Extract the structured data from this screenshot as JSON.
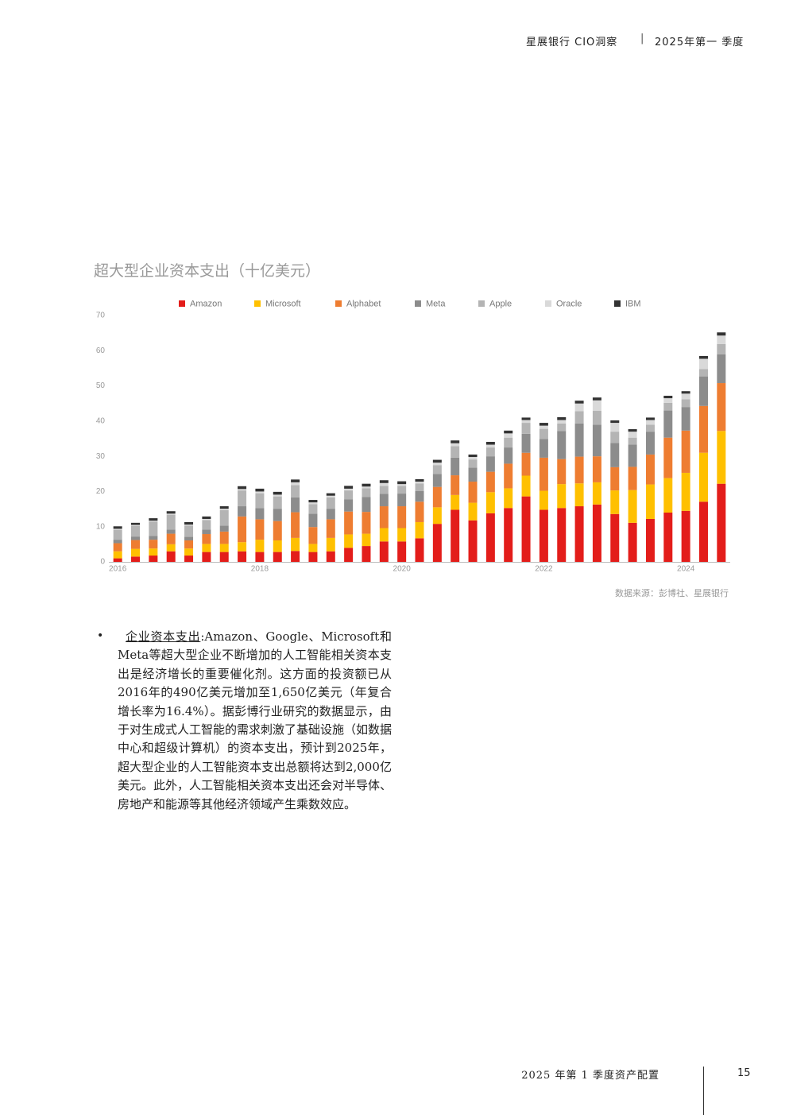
{
  "header": {
    "brand": "星展银行 CIO洞察",
    "separator": "|",
    "period": "2025年第一 季度"
  },
  "chart_data": {
    "type": "stacked_bar",
    "title": "超大型企业资本支出（十亿美元）",
    "categories": [
      "2016",
      null,
      null,
      null,
      null,
      null,
      null,
      null,
      "2018",
      null,
      null,
      null,
      null,
      null,
      null,
      null,
      "2020",
      null,
      null,
      null,
      null,
      null,
      null,
      null,
      "2022",
      null,
      null,
      null,
      null,
      null,
      null,
      null,
      "2024",
      null,
      null
    ],
    "series": [
      {
        "name": "Amazon",
        "color": "#e31d1a",
        "values": [
          1.0,
          1.5,
          1.8,
          3.0,
          1.8,
          2.8,
          2.8,
          3.0,
          2.8,
          2.8,
          3.1,
          2.8,
          3.0,
          4.0,
          4.5,
          5.8,
          5.8,
          6.7,
          10.8,
          14.8,
          11.8,
          13.8,
          15.3,
          18.6,
          14.8,
          15.3,
          15.8,
          16.3,
          13.6,
          11.1,
          12.2,
          14.0,
          14.5,
          17.1,
          22.2
        ]
      },
      {
        "name": "Microsoft",
        "color": "#ffc000",
        "values": [
          2.0,
          2.2,
          2.0,
          2.0,
          2.0,
          2.3,
          2.3,
          2.6,
          3.5,
          3.3,
          3.7,
          2.3,
          3.8,
          3.8,
          3.5,
          3.8,
          3.8,
          4.6,
          4.7,
          4.2,
          5.0,
          6.0,
          5.6,
          5.9,
          5.4,
          6.8,
          6.5,
          6.3,
          6.7,
          9.3,
          9.8,
          9.8,
          10.8,
          13.9,
          15.0
        ]
      },
      {
        "name": "Alphabet",
        "color": "#ee7d31",
        "values": [
          2.3,
          2.5,
          2.5,
          3.0,
          2.3,
          2.8,
          3.5,
          7.3,
          5.8,
          5.5,
          7.3,
          4.8,
          5.3,
          6.5,
          6.2,
          6.2,
          6.2,
          5.8,
          5.8,
          5.6,
          6.0,
          5.8,
          7.0,
          6.5,
          9.4,
          7.1,
          7.6,
          7.4,
          6.6,
          6.6,
          8.5,
          11.5,
          12.0,
          13.3,
          13.6
        ]
      },
      {
        "name": "Meta",
        "color": "#8c8c8c",
        "values": [
          1.0,
          1.0,
          1.1,
          1.2,
          1.0,
          1.3,
          1.7,
          2.9,
          3.2,
          3.5,
          4.2,
          3.8,
          3.0,
          3.5,
          4.2,
          3.5,
          3.6,
          3.0,
          3.7,
          5.0,
          4.0,
          4.4,
          4.6,
          5.4,
          5.3,
          8.0,
          9.4,
          9.0,
          6.9,
          6.3,
          6.5,
          7.7,
          6.7,
          8.4,
          8.2
        ]
      },
      {
        "name": "Apple",
        "color": "#b4b4b4",
        "values": [
          2.8,
          3.0,
          4.0,
          4.2,
          3.2,
          2.7,
          4.4,
          4.5,
          4.2,
          3.5,
          3.5,
          2.7,
          3.2,
          2.5,
          2.5,
          2.3,
          2.2,
          2.2,
          2.5,
          3.3,
          2.3,
          2.5,
          2.8,
          3.1,
          2.9,
          2.1,
          3.5,
          3.9,
          3.2,
          2.0,
          2.0,
          2.2,
          2.2,
          2.1,
          2.9
        ]
      },
      {
        "name": "Oracle",
        "color": "#d9d9d9",
        "values": [
          0.3,
          0.3,
          0.3,
          0.3,
          0.3,
          0.3,
          0.4,
          0.4,
          0.5,
          0.5,
          0.8,
          0.5,
          0.5,
          0.5,
          0.5,
          0.8,
          0.5,
          0.5,
          0.7,
          0.8,
          0.7,
          0.8,
          1.2,
          0.8,
          0.9,
          1.0,
          2.2,
          3.0,
          2.5,
          1.7,
          1.3,
          1.3,
          1.6,
          2.9,
          2.4
        ]
      },
      {
        "name": "IBM",
        "color": "#333333",
        "values": [
          0.7,
          0.6,
          0.7,
          0.7,
          0.7,
          0.7,
          0.7,
          0.8,
          0.8,
          0.8,
          0.8,
          0.7,
          0.7,
          0.8,
          0.8,
          0.8,
          0.8,
          0.7,
          0.8,
          0.8,
          0.7,
          0.8,
          0.8,
          0.7,
          0.8,
          0.8,
          0.8,
          0.8,
          0.7,
          0.7,
          0.7,
          0.7,
          0.7,
          0.8,
          0.9
        ]
      }
    ],
    "ylim": [
      0,
      70
    ],
    "yticks": [
      0,
      10,
      20,
      30,
      40,
      50,
      60,
      70
    ],
    "grid": false
  },
  "source": "数据来源：彭博社、星展银行",
  "body": {
    "bullet": "•",
    "lead": "企业资本支出",
    "text": ":Amazon、Google、Microsoft和Meta等超大型企业不断增加的人工智能相关资本支出是经济增长的重要催化剂。这方面的投资额已从2016年的490亿美元增加至1,650亿美元（年复合增长率为16.4%）。据彭博行业研究的数据显示，由于对生成式人工智能的需求刺激了基础设施（如数据中心和超级计算机）的资本支出，预计到2025年，超大型企业的人工智能资本支出总额将达到2,000亿美元。此外，人工智能相关资本支出还会对半导体、房地产和能源等其他经济领域产生乘数效应。"
  },
  "footer": {
    "title": "2025 年第 1 季度资产配置",
    "page": "15"
  }
}
